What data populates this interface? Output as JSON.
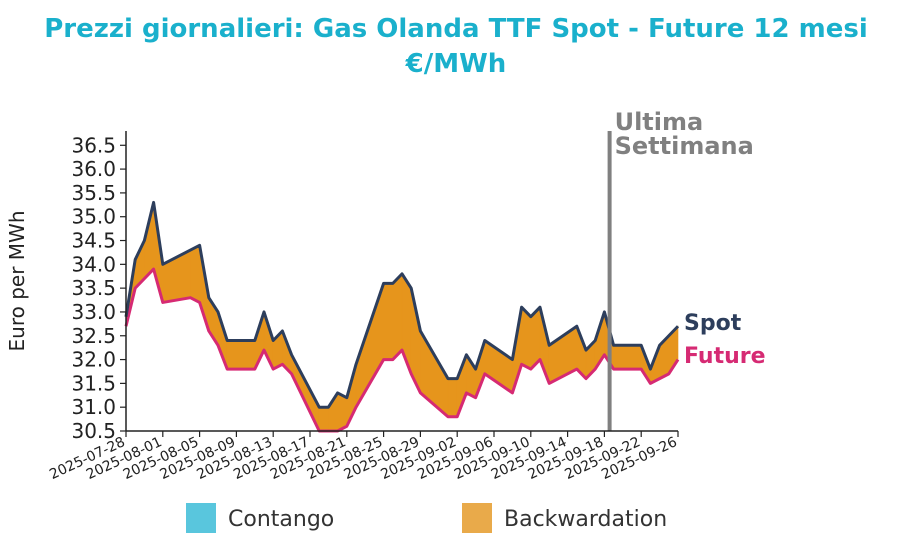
{
  "chart_data": {
    "type": "line",
    "title_line1": "Prezzi giornalieri: Gas Olanda TTF Spot - Future 12 mesi",
    "title_line2": "€/MWh",
    "ylabel": "Euro per MWh",
    "ylim": [
      30.5,
      36.8
    ],
    "y_ticks": [
      "30.5",
      "31.0",
      "31.5",
      "32.0",
      "32.5",
      "33.0",
      "33.5",
      "34.0",
      "34.5",
      "35.0",
      "35.5",
      "36.0",
      "36.5"
    ],
    "x_tick_labels": [
      "2025-07-28",
      "2025-08-01",
      "2025-08-05",
      "2025-08-09",
      "2025-08-13",
      "2025-08-17",
      "2025-08-21",
      "2025-08-25",
      "2025-08-29",
      "2025-09-02",
      "2025-09-06",
      "2025-09-10",
      "2025-09-14",
      "2025-09-18",
      "2025-09-22",
      "2025-09-26"
    ],
    "x_start": "2025-07-28",
    "x_end": "2025-09-26",
    "dates": [
      "2025-07-28",
      "2025-07-29",
      "2025-07-30",
      "2025-07-31",
      "2025-08-01",
      "2025-08-04",
      "2025-08-05",
      "2025-08-06",
      "2025-08-07",
      "2025-08-08",
      "2025-08-11",
      "2025-08-12",
      "2025-08-13",
      "2025-08-14",
      "2025-08-15",
      "2025-08-18",
      "2025-08-19",
      "2025-08-20",
      "2025-08-21",
      "2025-08-22",
      "2025-08-25",
      "2025-08-26",
      "2025-08-27",
      "2025-08-28",
      "2025-08-29",
      "2025-09-01",
      "2025-09-02",
      "2025-09-03",
      "2025-09-04",
      "2025-09-05",
      "2025-09-08",
      "2025-09-09",
      "2025-09-10",
      "2025-09-11",
      "2025-09-12",
      "2025-09-15",
      "2025-09-16",
      "2025-09-17",
      "2025-09-18",
      "2025-09-19",
      "2025-09-22",
      "2025-09-23",
      "2025-09-24",
      "2025-09-25",
      "2025-09-26"
    ],
    "series": [
      {
        "name": "Spot",
        "color": "#2d3e5c",
        "values": [
          32.9,
          34.1,
          34.5,
          35.3,
          34.0,
          34.3,
          34.4,
          33.3,
          33.0,
          32.4,
          32.4,
          33.0,
          32.4,
          32.6,
          32.1,
          31.0,
          31.0,
          31.3,
          31.2,
          31.9,
          33.6,
          33.6,
          33.8,
          33.5,
          32.6,
          31.6,
          31.6,
          32.1,
          31.8,
          32.4,
          32.0,
          33.1,
          32.9,
          33.1,
          32.3,
          32.7,
          32.2,
          32.4,
          33.0,
          32.3,
          32.3,
          31.8,
          32.3,
          32.5,
          32.7
        ]
      },
      {
        "name": "Future",
        "color": "#d62a73",
        "values": [
          32.7,
          33.5,
          33.7,
          33.9,
          33.2,
          33.3,
          33.2,
          32.6,
          32.3,
          31.8,
          31.8,
          32.2,
          31.8,
          31.9,
          31.7,
          30.5,
          30.5,
          30.5,
          30.6,
          31.0,
          32.0,
          32.0,
          32.2,
          31.7,
          31.3,
          30.8,
          30.8,
          31.3,
          31.2,
          31.7,
          31.3,
          31.9,
          31.8,
          32.0,
          31.5,
          31.8,
          31.6,
          31.8,
          32.1,
          31.8,
          31.8,
          31.5,
          31.6,
          31.7,
          32.0
        ]
      }
    ],
    "legend": [
      {
        "label": "Contango",
        "color": "#59c6dd"
      },
      {
        "label": "Backwardation",
        "color": "#e9aa4a"
      }
    ],
    "fill_color_backwardation": "#e6951c",
    "fill_color_contango": "#59c6dd",
    "last_week_marker": {
      "date": "2025-09-19",
      "label_line1": "Ultima",
      "label_line2": "Settimana",
      "color": "#808080"
    },
    "grid": false,
    "legend_position": "bottom"
  }
}
